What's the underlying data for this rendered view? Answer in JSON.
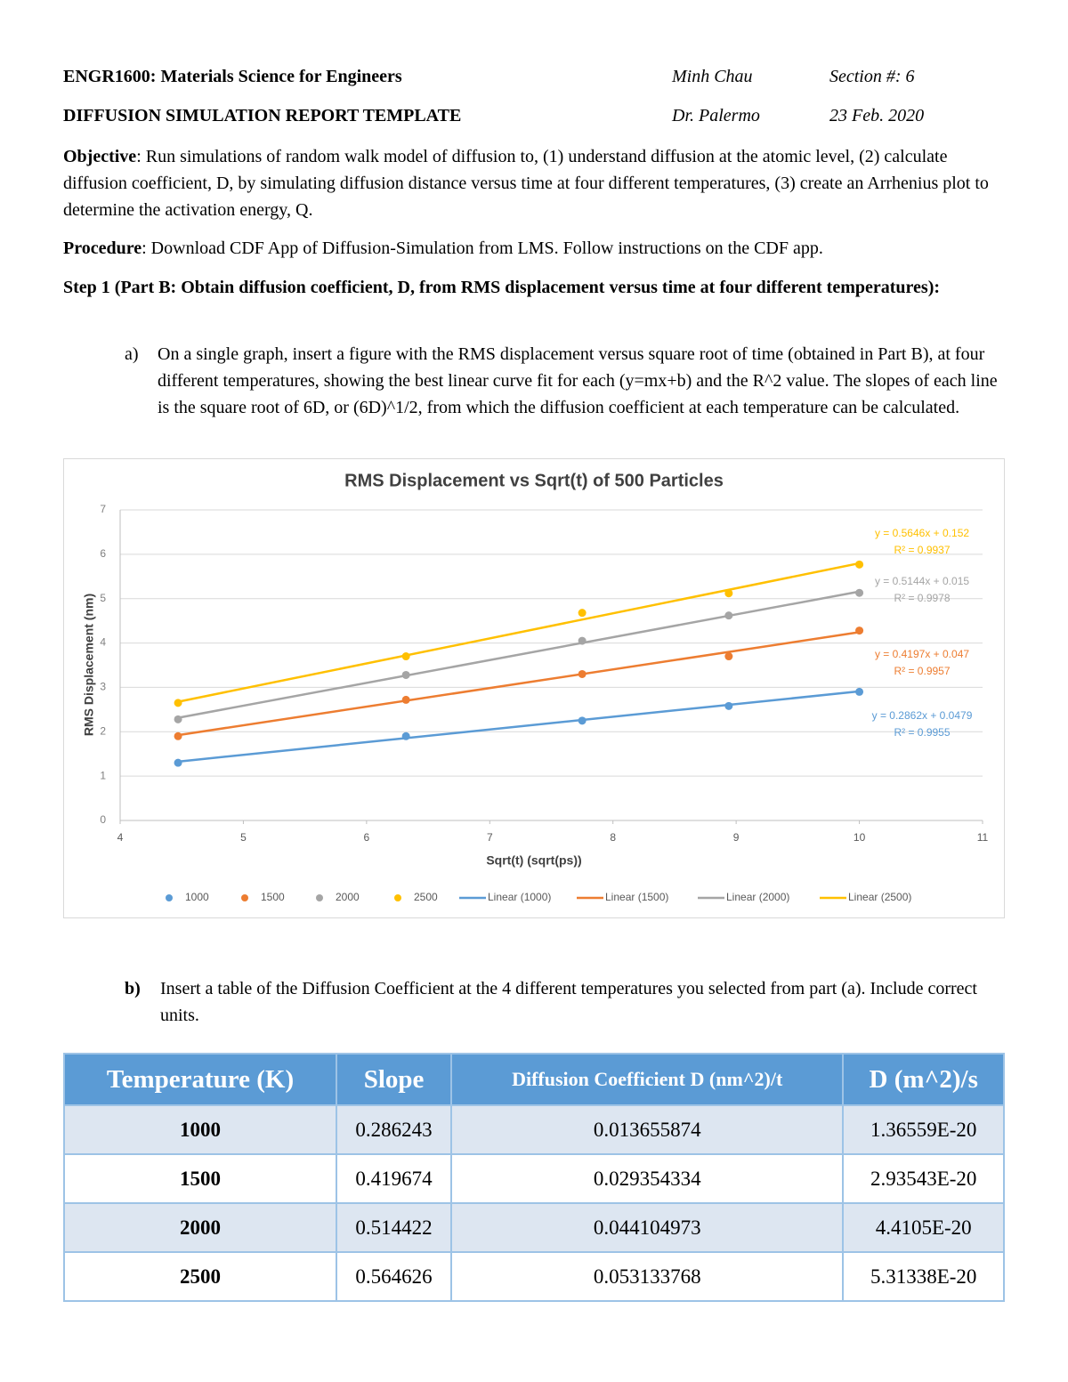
{
  "header": {
    "course": "ENGR1600: Materials Science for Engineers",
    "student": "Minh Chau",
    "section": "Section #: 6",
    "title": "DIFFUSION SIMULATION REPORT TEMPLATE",
    "instructor": "Dr. Palermo",
    "date": "23 Feb. 2020"
  },
  "objective": {
    "label": "Objective",
    "text": ": Run simulations of random walk model of diffusion to, (1) understand diffusion at the atomic level, (2) calculate diffusion coefficient, D, by simulating diffusion distance versus time at four different temperatures, (3) create an Arrhenius plot to determine the activation energy, Q."
  },
  "procedure": {
    "label": "Procedure",
    "text": ": Download CDF App of Diffusion-Simulation from LMS. Follow instructions on the CDF app."
  },
  "step1": "Step 1 (Part B: Obtain diffusion coefficient, D, from RMS displacement versus time at four different temperatures):",
  "item_a": {
    "marker": "a)",
    "text": "On a single graph, insert a figure with the RMS displacement versus square root of time (obtained in Part B), at four different temperatures, showing the best linear curve fit for each (y=mx+b) and the R^2 value. The slopes of each line is the square root of 6D, or (6D)^1/2, from which the diffusion coefficient at each temperature can be calculated."
  },
  "chart_data": {
    "type": "scatter",
    "title": "RMS Displacement vs Sqrt(t) of 500 Particles",
    "x_label": "Sqrt(t) (sqrt(ps))",
    "y_label": "RMS Displacement (nm)",
    "x": [
      4.47,
      6.32,
      7.75,
      8.94,
      10
    ],
    "xlim": [
      4,
      11
    ],
    "xticks": [
      4,
      5,
      6,
      7,
      8,
      9,
      10,
      11
    ],
    "ylim": [
      0,
      7
    ],
    "yticks": [
      0,
      1,
      2,
      3,
      4,
      5,
      6,
      7
    ],
    "grid": true,
    "legend": "bottom",
    "series": [
      {
        "name": "1000",
        "color": "#5b9bd5",
        "values": [
          1.3,
          1.9,
          2.25,
          2.58,
          2.9
        ],
        "trendline": {
          "name": "Linear (1000)",
          "slope": 0.2862,
          "intercept": 0.0479,
          "equation": "y = 0.2862x + 0.0479",
          "r2": "R² = 0.9955"
        }
      },
      {
        "name": "1500",
        "color": "#ed7d31",
        "values": [
          1.9,
          2.72,
          3.3,
          3.7,
          4.28
        ],
        "trendline": {
          "name": "Linear (1500)",
          "slope": 0.4197,
          "intercept": 0.047,
          "equation": "y = 0.4197x + 0.047",
          "r2": "R² = 0.9957"
        }
      },
      {
        "name": "2000",
        "color": "#a5a5a5",
        "values": [
          2.28,
          3.28,
          4.05,
          4.62,
          5.13
        ],
        "trendline": {
          "name": "Linear (2000)",
          "slope": 0.5144,
          "intercept": 0.015,
          "equation": "y = 0.5144x + 0.015",
          "r2": "R² = 0.9978"
        }
      },
      {
        "name": "2500",
        "color": "#ffc000",
        "values": [
          2.65,
          3.7,
          4.68,
          5.12,
          5.77
        ],
        "trendline": {
          "name": "Linear (2500)",
          "slope": 0.5646,
          "intercept": 0.152,
          "equation": "y = 0.5646x + 0.152",
          "r2": "R² = 0.9937"
        }
      }
    ]
  },
  "item_b": {
    "marker": "b)",
    "text": "Insert a table of the Diffusion Coefficient at the 4 different temperatures you selected from part (a). Include correct units."
  },
  "table": {
    "columns": [
      "Temperature (K)",
      "Slope",
      "Diffusion Coefficient D (nm^2)/t",
      "D (m^2)/s"
    ],
    "rows": [
      [
        "1000",
        "0.286243",
        "0.013655874",
        "1.36559E-20"
      ],
      [
        "1500",
        "0.419674",
        "0.029354334",
        "2.93543E-20"
      ],
      [
        "2000",
        "0.514422",
        "0.044104973",
        "4.4105E-20"
      ],
      [
        "2500",
        "0.564626",
        "0.053133768",
        "5.31338E-20"
      ]
    ]
  }
}
